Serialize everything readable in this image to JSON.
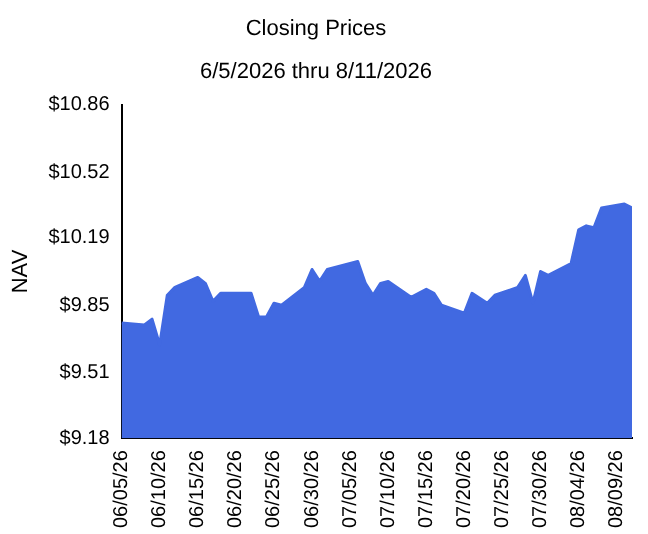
{
  "chart_data": {
    "type": "area",
    "title": "Closing Prices",
    "subtitle": "6/5/2026 thru 8/11/2026",
    "ylabel": "NAV",
    "x": [
      "2026-06-05",
      "2026-06-08",
      "2026-06-09",
      "2026-06-10",
      "2026-06-11",
      "2026-06-12",
      "2026-06-15",
      "2026-06-16",
      "2026-06-17",
      "2026-06-18",
      "2026-06-22",
      "2026-06-23",
      "2026-06-24",
      "2026-06-25",
      "2026-06-26",
      "2026-06-29",
      "2026-06-30",
      "2026-07-01",
      "2026-07-02",
      "2026-07-06",
      "2026-07-07",
      "2026-07-08",
      "2026-07-09",
      "2026-07-10",
      "2026-07-13",
      "2026-07-15",
      "2026-07-16",
      "2026-07-17",
      "2026-07-20",
      "2026-07-21",
      "2026-07-23",
      "2026-07-24",
      "2026-07-27",
      "2026-07-28",
      "2026-07-29",
      "2026-07-30",
      "2026-07-31",
      "2026-08-03",
      "2026-08-04",
      "2026-08-05",
      "2026-08-06",
      "2026-08-07",
      "2026-08-10",
      "2026-08-11"
    ],
    "series": [
      {
        "color": "#4169e1",
        "values": [
          9.76,
          9.75,
          9.78,
          9.65,
          9.9,
          9.94,
          9.99,
          9.96,
          9.87,
          9.91,
          9.91,
          9.79,
          9.79,
          9.86,
          9.85,
          9.94,
          10.03,
          9.97,
          10.03,
          10.07,
          9.96,
          9.9,
          9.96,
          9.97,
          9.89,
          9.93,
          9.91,
          9.85,
          9.81,
          9.91,
          9.86,
          9.9,
          9.94,
          10.0,
          9.86,
          10.02,
          10.0,
          10.06,
          10.23,
          10.25,
          10.24,
          10.34,
          10.36,
          10.34
        ]
      }
    ],
    "xlim": [
      "2026-06-05",
      "2026-08-11"
    ],
    "xticks": [
      {
        "value": "2026-06-05",
        "label": "06/05/26"
      },
      {
        "value": "2026-06-10",
        "label": "06/10/26"
      },
      {
        "value": "2026-06-15",
        "label": "06/15/26"
      },
      {
        "value": "2026-06-20",
        "label": "06/20/26"
      },
      {
        "value": "2026-06-25",
        "label": "06/25/26"
      },
      {
        "value": "2026-06-30",
        "label": "06/30/26"
      },
      {
        "value": "2026-07-05",
        "label": "07/05/26"
      },
      {
        "value": "2026-07-10",
        "label": "07/10/26"
      },
      {
        "value": "2026-07-15",
        "label": "07/15/26"
      },
      {
        "value": "2026-07-20",
        "label": "07/20/26"
      },
      {
        "value": "2026-07-25",
        "label": "07/25/26"
      },
      {
        "value": "2026-07-30",
        "label": "07/30/26"
      },
      {
        "value": "2026-08-04",
        "label": "08/04/26"
      },
      {
        "value": "2026-08-09",
        "label": "08/09/26"
      }
    ],
    "ylim": [
      9.18,
      10.86
    ],
    "yticks": [
      {
        "value": 9.18,
        "label": "$9.18"
      },
      {
        "value": 9.51,
        "label": "$9.51"
      },
      {
        "value": 9.85,
        "label": "$9.85"
      },
      {
        "value": 10.19,
        "label": "$10.19"
      },
      {
        "value": 10.52,
        "label": "$10.52"
      },
      {
        "value": 10.86,
        "label": "$10.86"
      }
    ],
    "grid": false,
    "legend": false,
    "marker": "none"
  }
}
